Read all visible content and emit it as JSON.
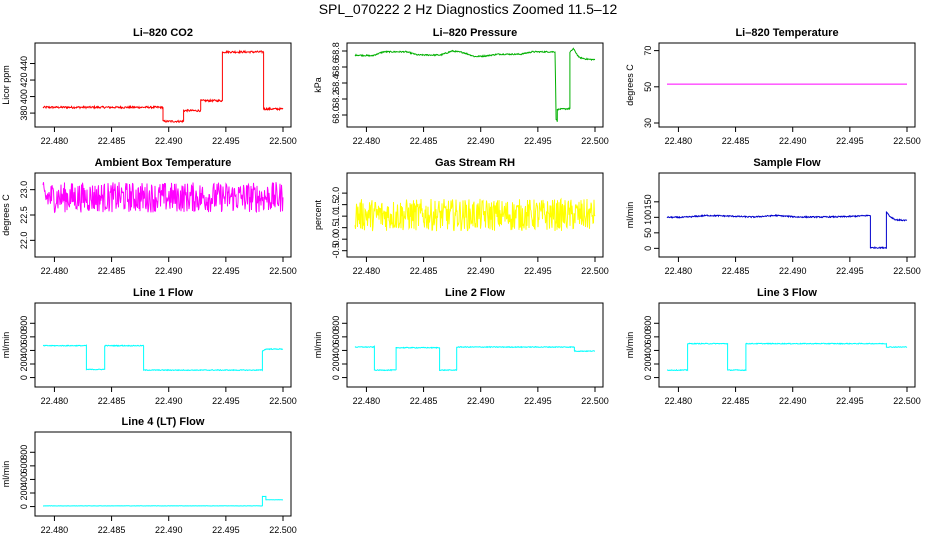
{
  "page_title": "SPL_070222  2 Hz Diagnostics Zoomed 11.5–12",
  "colors": {
    "co2": "#ff0000",
    "pressure": "#00b000",
    "temperature": "#ff00ff",
    "ambient": "#ff00ff",
    "rh": "#ffff00",
    "sample": "#0000cc",
    "line_flow": "#00ffff"
  },
  "chart_data": [
    {
      "type": "line",
      "title": "Li–820 CO2",
      "ylabel": "Licor ppm",
      "color_key": "co2",
      "xlim": [
        22.479,
        22.5
      ],
      "xticks": [
        22.48,
        22.485,
        22.49,
        22.495,
        22.5
      ],
      "ylim": [
        368,
        460
      ],
      "yticks": [
        380,
        400,
        420,
        440
      ],
      "noise": 1.2,
      "series": [
        {
          "x": [
            22.479,
            22.4895,
            22.4895,
            22.4913,
            22.4913,
            22.4928,
            22.4928,
            22.4947,
            22.4947,
            22.4983,
            22.4983,
            22.5
          ],
          "y": [
            387,
            387,
            370,
            370,
            383,
            383,
            395,
            395,
            454,
            454,
            385,
            385
          ]
        }
      ]
    },
    {
      "type": "line",
      "title": "Li–820 Pressure",
      "ylabel": "kPa",
      "color_key": "pressure",
      "xlim": [
        22.479,
        22.5
      ],
      "xticks": [
        22.48,
        22.485,
        22.49,
        22.495,
        22.5
      ],
      "ylim": [
        67.9,
        68.85
      ],
      "yticks": [
        68.0,
        68.2,
        68.4,
        68.6,
        68.8
      ],
      "noise": 0.008,
      "series": [
        {
          "x": [
            22.479,
            22.4805,
            22.4815,
            22.4835,
            22.4845,
            22.4865,
            22.4875,
            22.4885,
            22.4895,
            22.4905,
            22.4915,
            22.4935,
            22.4945,
            22.4965,
            22.4966,
            22.4967,
            22.4967,
            22.4978,
            22.4978,
            22.4981,
            22.4986,
            22.4992,
            22.5
          ],
          "y": [
            68.75,
            68.74,
            68.79,
            68.79,
            68.75,
            68.75,
            68.8,
            68.78,
            68.73,
            68.74,
            68.76,
            68.76,
            68.79,
            68.79,
            67.95,
            67.92,
            68.07,
            68.08,
            68.78,
            68.83,
            68.72,
            68.7,
            68.69
          ]
        }
      ]
    },
    {
      "type": "line",
      "title": "Li–820 Temperature",
      "ylabel": "degrees C",
      "color_key": "temperature",
      "xlim": [
        22.479,
        22.5
      ],
      "xticks": [
        22.48,
        22.485,
        22.49,
        22.495,
        22.5
      ],
      "ylim": [
        30,
        72
      ],
      "yticks": [
        30,
        50,
        70
      ],
      "noise": 0,
      "series": [
        {
          "x": [
            22.479,
            22.5
          ],
          "y": [
            51.5,
            51.5
          ]
        }
      ]
    },
    {
      "type": "line",
      "title": "Ambient Box Temperature",
      "ylabel": "degrees C",
      "color_key": "ambient",
      "xlim": [
        22.479,
        22.5
      ],
      "xticks": [
        22.48,
        22.485,
        22.49,
        22.495,
        22.5
      ],
      "ylim": [
        21.75,
        23.25
      ],
      "yticks": [
        22.0,
        22.5,
        23.0
      ],
      "noise": 0.3,
      "series": [
        {
          "x": [
            22.479,
            22.5
          ],
          "y": [
            22.85,
            22.85
          ]
        }
      ]
    },
    {
      "type": "line",
      "title": "Gas Stream RH",
      "ylabel": "percent",
      "color_key": "rh",
      "xlim": [
        22.479,
        22.5
      ],
      "xticks": [
        22.48,
        22.485,
        22.49,
        22.495,
        22.5
      ],
      "ylim": [
        -0.6,
        2.7
      ],
      "yticks": [
        -0.5,
        0.0,
        0.5,
        1.0,
        1.5,
        2.0
      ],
      "noise": 0.7,
      "series": [
        {
          "x": [
            22.479,
            22.5
          ],
          "y": [
            1.05,
            1.05
          ]
        }
      ]
    },
    {
      "type": "line",
      "title": "Sample Flow",
      "ylabel": "ml/min",
      "color_key": "sample",
      "xlim": [
        22.479,
        22.5
      ],
      "xticks": [
        22.48,
        22.485,
        22.49,
        22.495,
        22.5
      ],
      "ylim": [
        -15,
        230
      ],
      "yticks": [
        0,
        50,
        100,
        150
      ],
      "noise": 2,
      "series": [
        {
          "x": [
            22.479,
            22.4805,
            22.4825,
            22.4845,
            22.4865,
            22.4885,
            22.4905,
            22.4925,
            22.4945,
            22.4968,
            22.4968,
            22.4982,
            22.4982,
            22.4985,
            22.499,
            22.5
          ],
          "y": [
            100,
            100,
            106,
            104,
            101,
            106,
            101,
            101,
            102,
            106,
            2,
            2,
            118,
            103,
            92,
            90
          ]
        }
      ]
    },
    {
      "type": "line",
      "title": "Line 1 Flow",
      "ylabel": "ml/min",
      "color_key": "line_flow",
      "xlim": [
        22.479,
        22.5
      ],
      "xticks": [
        22.48,
        22.485,
        22.49,
        22.495,
        22.5
      ],
      "ylim": [
        -80,
        1040
      ],
      "yticks": [
        0,
        200,
        400,
        600,
        800
      ],
      "noise": 6,
      "series": [
        {
          "x": [
            22.479,
            22.4828,
            22.4828,
            22.4844,
            22.4844,
            22.4878,
            22.4878,
            22.4982,
            22.4982,
            22.4985,
            22.5
          ],
          "y": [
            470,
            470,
            120,
            120,
            470,
            470,
            110,
            110,
            390,
            420,
            420
          ]
        }
      ]
    },
    {
      "type": "line",
      "title": "Line 2 Flow",
      "ylabel": "ml/min",
      "color_key": "line_flow",
      "xlim": [
        22.479,
        22.5
      ],
      "xticks": [
        22.48,
        22.485,
        22.49,
        22.495,
        22.5
      ],
      "ylim": [
        -80,
        1040
      ],
      "yticks": [
        0,
        200,
        400,
        600,
        800
      ],
      "noise": 6,
      "series": [
        {
          "x": [
            22.479,
            22.4807,
            22.4807,
            22.4826,
            22.4826,
            22.4864,
            22.4864,
            22.4879,
            22.4879,
            22.4982,
            22.4982,
            22.5
          ],
          "y": [
            450,
            450,
            110,
            110,
            440,
            440,
            110,
            110,
            450,
            450,
            390,
            390
          ]
        }
      ]
    },
    {
      "type": "line",
      "title": "Line 3 Flow",
      "ylabel": "ml/min",
      "color_key": "line_flow",
      "xlim": [
        22.479,
        22.5
      ],
      "xticks": [
        22.48,
        22.485,
        22.49,
        22.495,
        22.5
      ],
      "ylim": [
        -80,
        1040
      ],
      "yticks": [
        0,
        200,
        400,
        600,
        800
      ],
      "noise": 6,
      "series": [
        {
          "x": [
            22.479,
            22.4808,
            22.4808,
            22.4843,
            22.4843,
            22.4859,
            22.4859,
            22.4982,
            22.4982,
            22.5
          ],
          "y": [
            110,
            110,
            500,
            500,
            110,
            110,
            500,
            500,
            450,
            450
          ]
        }
      ]
    },
    {
      "type": "line",
      "title": "Line 4 (LT) Flow",
      "ylabel": "ml/min",
      "color_key": "line_flow",
      "xlim": [
        22.479,
        22.5
      ],
      "xticks": [
        22.48,
        22.485,
        22.49,
        22.495,
        22.5
      ],
      "ylim": [
        -80,
        1040
      ],
      "yticks": [
        0,
        200,
        400,
        600,
        800
      ],
      "noise": 2,
      "series": [
        {
          "x": [
            22.479,
            22.4982,
            22.4982,
            22.4985,
            22.4985,
            22.5
          ],
          "y": [
            10,
            10,
            150,
            150,
            100,
            100
          ]
        }
      ]
    }
  ]
}
